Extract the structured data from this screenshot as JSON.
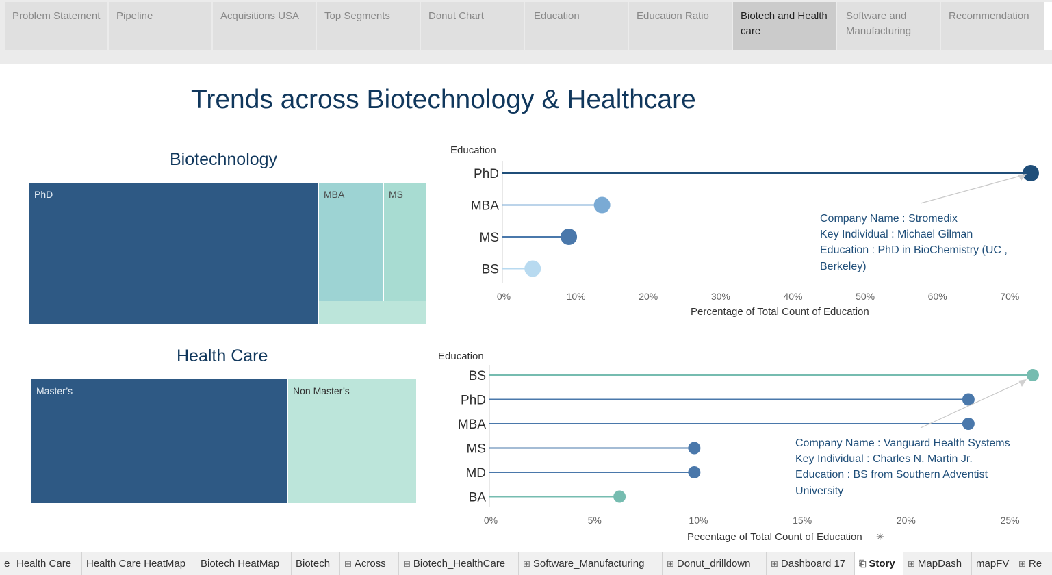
{
  "story_points": [
    {
      "label": "Problem Statement"
    },
    {
      "label": "Pipeline"
    },
    {
      "label": "Acquisitions USA"
    },
    {
      "label": "Top Segments"
    },
    {
      "label": "Donut Chart"
    },
    {
      "label": "Education"
    },
    {
      "label": "Education Ratio"
    },
    {
      "label": "Biotech and Health care",
      "active": true
    },
    {
      "label": "Software and Manufacturing"
    },
    {
      "label": "Recommendation"
    }
  ],
  "dashboard": {
    "title": "Trends across Biotechnology & Healthcare",
    "biotech": {
      "title": "Biotechnology",
      "treemap": [
        {
          "label": "PhD",
          "color": "#2e5984"
        },
        {
          "label": "MBA",
          "color": "#9dd3d3"
        },
        {
          "label": "MS",
          "color": "#a8dcd2"
        },
        {
          "label": "",
          "color": "#bce5da"
        }
      ]
    },
    "health": {
      "title": "Health Care",
      "treemap": [
        {
          "label": "Master’s",
          "color": "#2e5984"
        },
        {
          "label": "Non Master’s",
          "color": "#bce5da"
        }
      ]
    }
  },
  "chart_data": [
    {
      "type": "scatter",
      "ylabel": "Education",
      "xlabel": "Percentage of Total Count of Education",
      "categories": [
        "PhD",
        "MBA",
        "MS",
        "BS"
      ],
      "values": [
        72.9,
        13.6,
        9.0,
        4.0
      ],
      "colors": [
        "#1f4e79",
        "#7aaad4",
        "#4a78ab",
        "#b8daf0"
      ],
      "xlim": [
        0,
        73
      ],
      "xticks": [
        0,
        10,
        20,
        30,
        40,
        50,
        60,
        70
      ],
      "xtick_labels": [
        "0%",
        "10%",
        "20%",
        "30%",
        "40%",
        "50%",
        "60%",
        "70%"
      ],
      "annotation": [
        "Company Name : Stromedix",
        "Key Individual : Michael Gilman",
        "Education : PhD in BioChemistry (UC ,",
        "Berkeley)"
      ]
    },
    {
      "type": "scatter",
      "ylabel": "Education",
      "xlabel": "Pecentage of Total Count of Education",
      "categories": [
        "BS",
        "PhD",
        "MBA",
        "MS",
        "MD",
        "BA"
      ],
      "values": [
        26.1,
        23.0,
        23.0,
        9.8,
        9.8,
        6.2
      ],
      "colors": [
        "#76bcb0",
        "#4a78ab",
        "#4a78ab",
        "#4a78ab",
        "#4a78ab",
        "#76bcb0"
      ],
      "xlim": [
        0,
        26.2
      ],
      "xticks": [
        0,
        5,
        10,
        15,
        20,
        25
      ],
      "xtick_labels": [
        "0%",
        "5%",
        "10%",
        "15%",
        "20%",
        "25%"
      ],
      "annotation": [
        "Company Name : Vanguard Health Systems",
        "Key Individual : Charles N. Martin Jr.",
        "Education : BS from Southern Adventist",
        "University"
      ]
    }
  ],
  "sheet_tabs": [
    {
      "label": "e",
      "icon": ""
    },
    {
      "label": "Health Care",
      "icon": ""
    },
    {
      "label": "Health Care HeatMap",
      "icon": ""
    },
    {
      "label": "Biotech HeatMap",
      "icon": ""
    },
    {
      "label": "Biotech",
      "icon": ""
    },
    {
      "label": "Across",
      "icon": "⊞"
    },
    {
      "label": "Biotech_HealthCare",
      "icon": "⊞"
    },
    {
      "label": "Software_Manufacturing",
      "icon": "⊞"
    },
    {
      "label": "Donut_drilldown",
      "icon": "⊞"
    },
    {
      "label": "Dashboard 17",
      "icon": "⊞"
    },
    {
      "label": "Story",
      "icon": "⎗",
      "active": true
    },
    {
      "label": "MapDash",
      "icon": "⊞"
    },
    {
      "label": "mapFV",
      "icon": ""
    },
    {
      "label": "Re",
      "icon": "⊞"
    }
  ]
}
